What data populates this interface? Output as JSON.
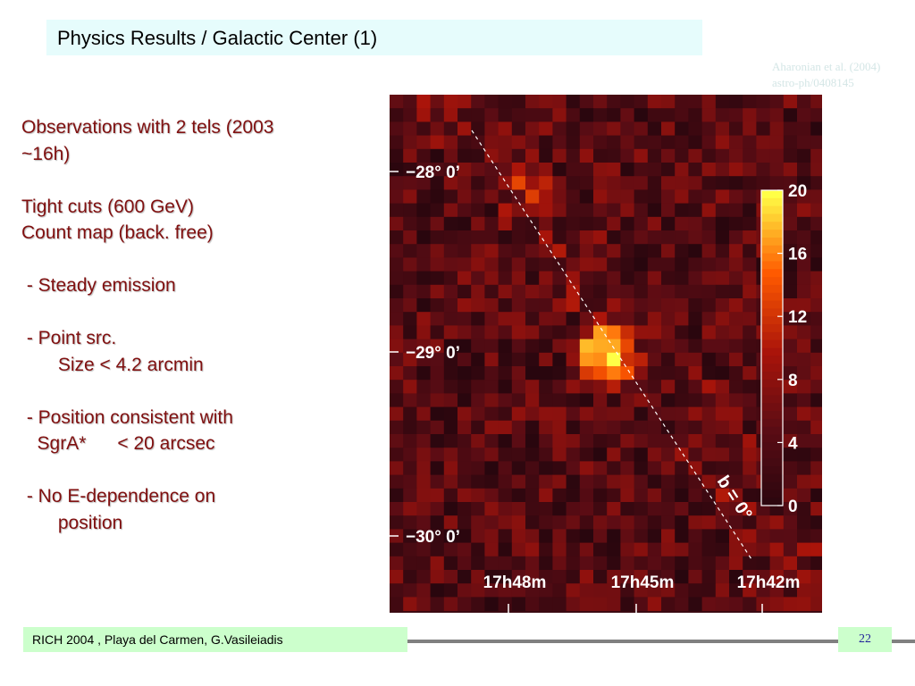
{
  "slide": {
    "title": "Physics Results / Galactic Center (1)",
    "citation": [
      "Aharonian et al. (2004)",
      "astro-ph/0408145"
    ],
    "bullets": [
      "Observations with 2 tels (2003",
      "~16h)",
      "",
      "Tight cuts (600 GeV)",
      "Count map (back. free)",
      "",
      " - Steady emission",
      "",
      " - Point src.",
      "       Size < 4.2 arcmin",
      "",
      " - Position consistent with",
      "   SgrA*      < 20 arcsec",
      "",
      " - No E-dependence on",
      "       position"
    ],
    "footer": {
      "text": "RICH 2004 , Playa del Carmen, G.Vasileiadis",
      "page": "22"
    }
  },
  "figure": {
    "y_tick_labels": [
      "−28° 0’",
      "−29° 0’",
      "−30° 0’"
    ],
    "x_tick_labels": [
      "17h48m",
      "17h45m",
      "17h42m"
    ],
    "galactic_plane_label": "b = 0°",
    "colorbar": {
      "min": 0,
      "max": 20,
      "tick_labels": [
        "20",
        "16",
        "12",
        "8",
        "4",
        "0"
      ]
    },
    "colors": {
      "background": "#3a0a12",
      "bright": "#ffff40",
      "mid": "#ff3000",
      "low": "#300010"
    }
  }
}
